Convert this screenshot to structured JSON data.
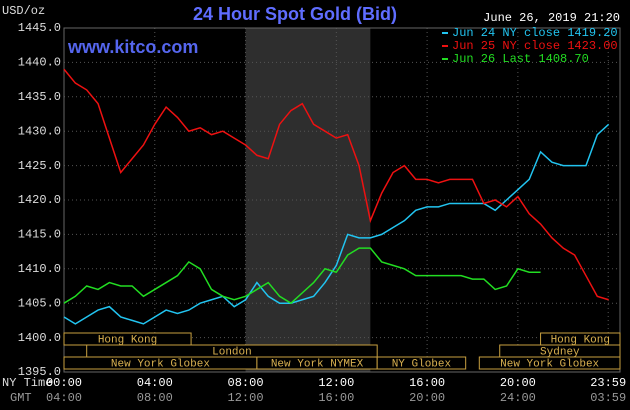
{
  "chart_data": {
    "type": "line",
    "title": "24 Hour Spot Gold (Bid)",
    "subtitle": "June 26, 2019 21:20",
    "watermark": "www.kitco.com",
    "y_label": "USD/oz",
    "x_label": "NY Time",
    "x2_label": "GMT",
    "x": [
      0,
      0.5,
      1,
      1.5,
      2,
      2.5,
      3,
      3.5,
      4,
      4.5,
      5,
      5.5,
      6,
      6.5,
      7,
      7.5,
      8,
      8.5,
      9,
      9.5,
      10,
      10.5,
      11,
      11.5,
      12,
      12.5,
      13,
      13.5,
      14,
      14.5,
      15,
      15.5,
      16,
      16.5,
      17,
      17.5,
      18,
      18.5,
      19,
      19.5,
      20,
      20.5,
      21,
      21.5,
      22,
      22.5,
      23,
      23.5,
      24
    ],
    "series": [
      {
        "name": "Jun 24 NY close 1419.20",
        "color": "#22c4f0",
        "values": [
          1403,
          1402,
          1403,
          1404,
          1404.5,
          1403,
          1402.5,
          1402,
          1403,
          1404,
          1403.5,
          1404,
          1405,
          1405.5,
          1406,
          1404.5,
          1405.5,
          1408,
          1406,
          1405,
          1405,
          1405.5,
          1406,
          1408,
          1410.5,
          1415,
          1414.5,
          1414.5,
          1415,
          1416,
          1417,
          1418.5,
          1419,
          1419,
          1419.5,
          1419.5,
          1419.5,
          1419.5,
          1418.5,
          1420,
          1421.5,
          1423,
          1427,
          1425.5,
          1425,
          1425,
          1425,
          1429.5,
          1431
        ]
      },
      {
        "name": "Jun 25 NY close 1423.00",
        "color": "#ee1111",
        "values": [
          1439,
          1437,
          1436,
          1434,
          1429,
          1424,
          1426,
          1428,
          1431,
          1433.5,
          1432,
          1430,
          1430.5,
          1429.5,
          1430,
          1429,
          1428,
          1426.5,
          1426,
          1431,
          1433,
          1434,
          1431,
          1430,
          1429,
          1429.5,
          1425,
          1417,
          1421,
          1424,
          1425,
          1423,
          1423,
          1422.5,
          1423,
          1423,
          1423,
          1419.5,
          1420,
          1419,
          1420.5,
          1418,
          1416.5,
          1414.5,
          1413,
          1412,
          1409,
          1406,
          1405.5
        ]
      },
      {
        "name": "Jun 26 Last 1408.70",
        "color": "#22dd22",
        "values": [
          1405,
          1406,
          1407.5,
          1407,
          1408,
          1407.5,
          1407.5,
          1406,
          1407,
          1408,
          1409,
          1411,
          1410,
          1407,
          1406,
          1405.5,
          1406,
          1407,
          1408,
          1406,
          1405,
          1406.5,
          1408,
          1410,
          1409.5,
          1412,
          1413,
          1413,
          1411,
          1410.5,
          1410,
          1409,
          1409,
          1409,
          1409,
          1409,
          1408.5,
          1408.5,
          1407,
          1407.5,
          1410,
          1409.5,
          1409.5,
          null,
          null,
          null,
          null,
          null,
          null
        ]
      }
    ],
    "xlim": [
      0,
      24.5
    ],
    "ylim": [
      1395,
      1445
    ],
    "yticks": [
      {
        "value": 1395,
        "label": "1395.0"
      },
      {
        "value": 1400,
        "label": "1400.0"
      },
      {
        "value": 1405,
        "label": "1405.0"
      },
      {
        "value": 1410,
        "label": "1410.0"
      },
      {
        "value": 1415,
        "label": "1415.0"
      },
      {
        "value": 1420,
        "label": "1420.0"
      },
      {
        "value": 1425,
        "label": "1425.0"
      },
      {
        "value": 1430,
        "label": "1430.0"
      },
      {
        "value": 1435,
        "label": "1435.0"
      },
      {
        "value": 1440,
        "label": "1440.0"
      },
      {
        "value": 1445,
        "label": "1445.0"
      }
    ],
    "xticks": [
      {
        "value": 0,
        "label": "00:00"
      },
      {
        "value": 4,
        "label": "04:00"
      },
      {
        "value": 8,
        "label": "08:00"
      },
      {
        "value": 12,
        "label": "12:00"
      },
      {
        "value": 16,
        "label": "16:00"
      },
      {
        "value": 20,
        "label": "20:00"
      },
      {
        "value": 23.98,
        "label": "23:59"
      }
    ],
    "x2tick_labels": [
      "04:00",
      "08:00",
      "12:00",
      "16:00",
      "20:00",
      "24:00",
      "03:59"
    ],
    "highlight": [
      8,
      13.5
    ],
    "grid": true,
    "session_rows": [
      [
        {
          "label": "Hong Kong",
          "start": 0,
          "end": 5.6
        },
        {
          "label": "Hong Kong",
          "start": 21,
          "end": 24.5
        }
      ],
      [
        {
          "label": "London",
          "start": 1,
          "end": 13.8
        },
        {
          "label": "Sydney",
          "start": 19.2,
          "end": 24.5
        }
      ],
      [
        {
          "label": "New York Globex",
          "start": 0,
          "end": 8.5
        },
        {
          "label": "New York NYMEX",
          "start": 8.5,
          "end": 13.8
        },
        {
          "label": "NY Globex",
          "start": 13.8,
          "end": 17.7
        },
        {
          "label": "New York Globex",
          "start": 18.3,
          "end": 24.5
        }
      ]
    ]
  }
}
